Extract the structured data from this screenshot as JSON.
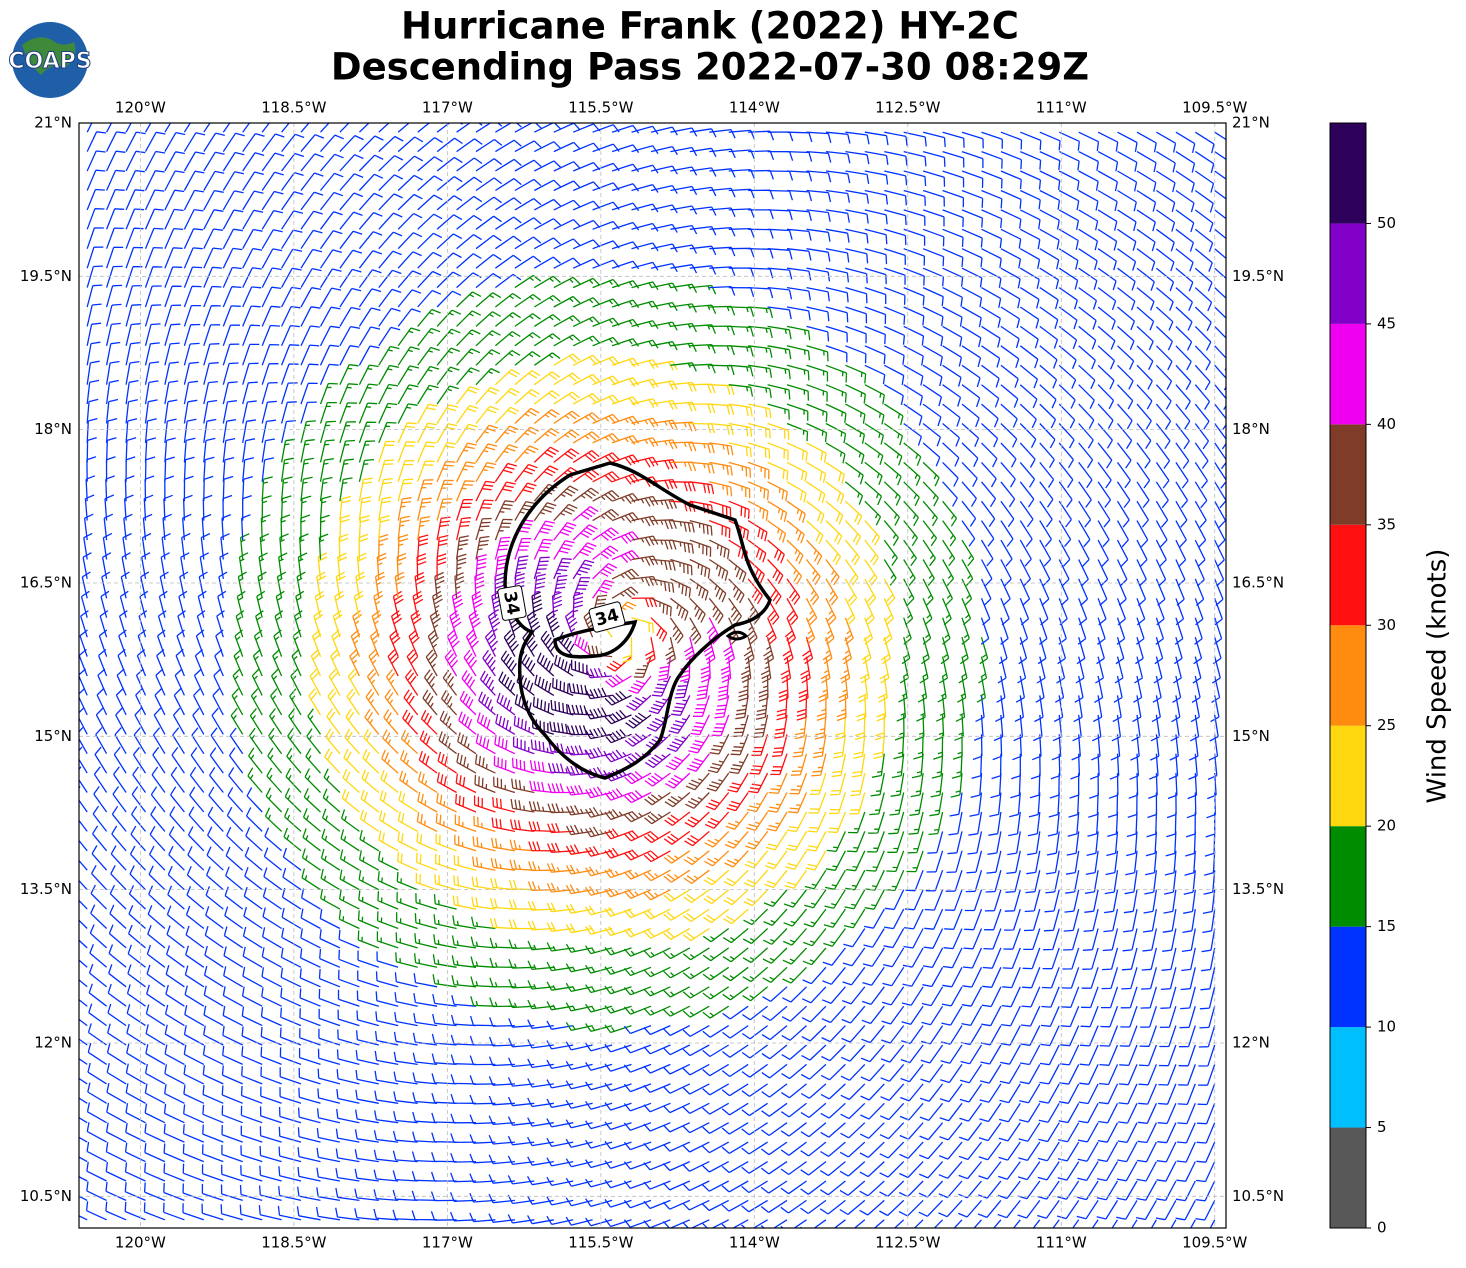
{
  "header": {
    "logo": "COAPS",
    "title": "Hurricane Frank (2022) HY-2C",
    "subtitle": "Descending Pass 2022-07-30 08:29Z"
  },
  "map": {
    "lon_range": [
      -120.6,
      -109.39
    ],
    "lat_range": [
      10.19,
      21
    ],
    "lon_ticks": [
      {
        "value": -120,
        "label": "120°W"
      },
      {
        "value": -118.5,
        "label": "118.5°W"
      },
      {
        "value": -117,
        "label": "117°W"
      },
      {
        "value": -115.5,
        "label": "115.5°W"
      },
      {
        "value": -114,
        "label": "114°W"
      },
      {
        "value": -112.5,
        "label": "112.5°W"
      },
      {
        "value": -111,
        "label": "111°W"
      },
      {
        "value": -109.5,
        "label": "109.5°W"
      }
    ],
    "lat_ticks": [
      {
        "value": 21,
        "label": "21°N"
      },
      {
        "value": 19.5,
        "label": "19.5°N"
      },
      {
        "value": 18,
        "label": "18°N"
      },
      {
        "value": 16.5,
        "label": "16.5°N"
      },
      {
        "value": 15,
        "label": "15°N"
      },
      {
        "value": 13.5,
        "label": "13.5°N"
      },
      {
        "value": 12,
        "label": "12°N"
      },
      {
        "value": 10.5,
        "label": "10.5°N"
      }
    ],
    "grid": true,
    "contour_label": "34"
  },
  "colorbar": {
    "label": "Wind Speed (knots)",
    "range": [
      0,
      55
    ],
    "ticks": [
      0,
      5,
      10,
      15,
      20,
      25,
      30,
      35,
      40,
      45,
      50
    ],
    "colors": [
      "#585858",
      "#00bfff",
      "#0033ff",
      "#008c00",
      "#ffd70f",
      "#ff8c0f",
      "#ff0f0f",
      "#7f3c28",
      "#f000f0",
      "#8200c8",
      "#2d0059"
    ]
  }
}
